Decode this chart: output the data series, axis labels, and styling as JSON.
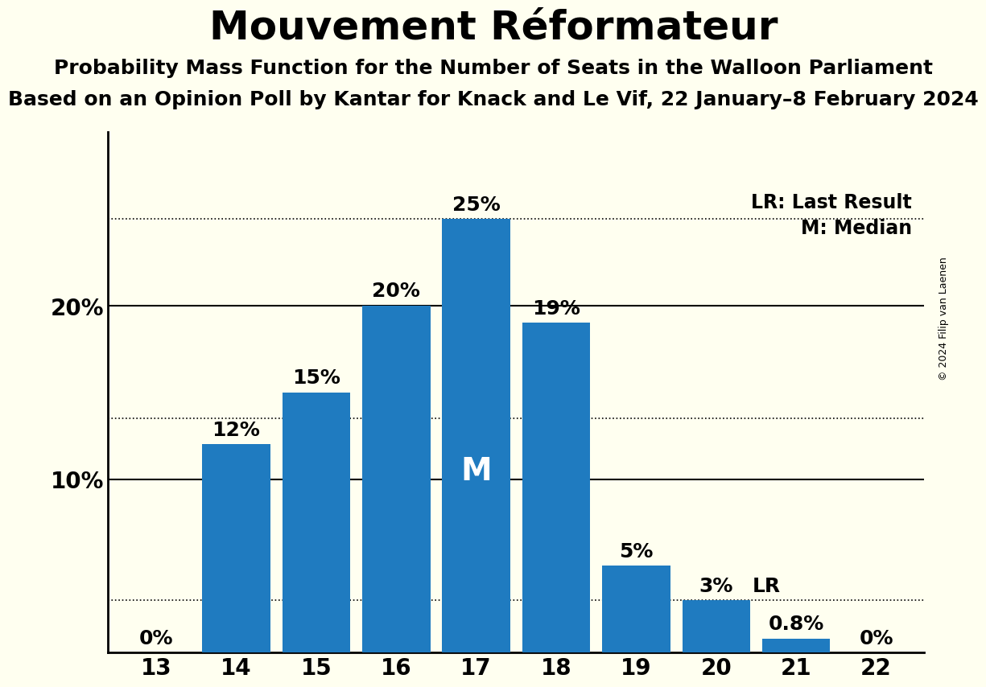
{
  "title": "Mouvement Réformateur",
  "subtitle1": "Probability Mass Function for the Number of Seats in the Walloon Parliament",
  "subtitle2": "Based on an Opinion Poll by Kantar for Knack and Le Vif, 22 January–8 February 2024",
  "copyright": "© 2024 Filip van Laenen",
  "categories": [
    13,
    14,
    15,
    16,
    17,
    18,
    19,
    20,
    21,
    22
  ],
  "values": [
    0,
    12,
    15,
    20,
    25,
    19,
    5,
    3,
    0.8,
    0
  ],
  "labels": [
    "0%",
    "12%",
    "15%",
    "20%",
    "25%",
    "19%",
    "5%",
    "3%",
    "0.8%",
    "0%"
  ],
  "bar_color": "#1f7bc0",
  "background_color": "#fffff0",
  "median_seat": 17,
  "lr_seat": 20,
  "lr_value": 3,
  "median_label": "M",
  "lr_label": "LR",
  "legend_lr": "LR: Last Result",
  "legend_m": "M: Median",
  "solid_lines": [
    10,
    20
  ],
  "dotted_lines": [
    3,
    13.5,
    25
  ],
  "ylim": [
    0,
    30
  ],
  "title_fontsize": 36,
  "subtitle_fontsize": 18,
  "bar_label_fontsize": 18,
  "median_label_fontsize": 28,
  "axis_fontsize": 20,
  "legend_fontsize": 17,
  "copyright_fontsize": 9
}
